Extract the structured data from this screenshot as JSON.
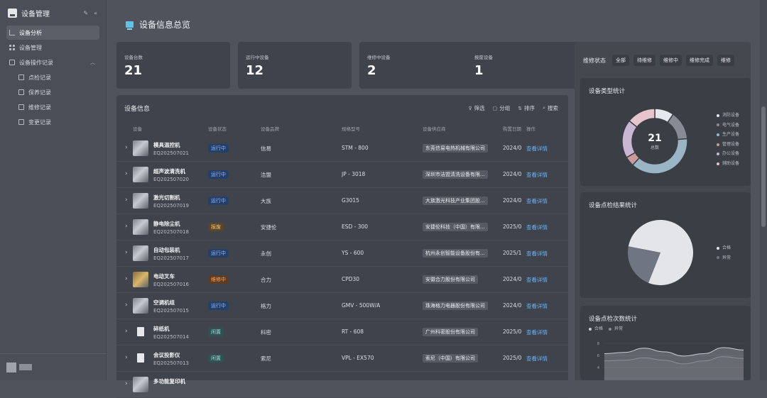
{
  "sidebar": {
    "title": "设备管理",
    "items": [
      {
        "label": "设备分析",
        "active": true
      },
      {
        "label": "设备管理"
      },
      {
        "label": "设备操作记录",
        "expanded": true
      },
      {
        "label": "点检记录"
      },
      {
        "label": "保养记录"
      },
      {
        "label": "维修记录"
      },
      {
        "label": "变更记录"
      }
    ],
    "collapse_icon": "double-chevron-left-icon",
    "edit_icon": "edit-icon"
  },
  "page": {
    "title": "设备信息总览"
  },
  "stats": [
    {
      "label": "设备台数",
      "value": "21"
    },
    {
      "label": "运行中设备",
      "value": "12"
    },
    {
      "label": "维修中设备",
      "value": "2"
    },
    {
      "label": "报废设备",
      "value": "1"
    }
  ],
  "table": {
    "title": "设备信息",
    "toolbar": {
      "filter": "筛选",
      "group": "分组",
      "sort": "排序",
      "search": "搜索"
    },
    "columns": [
      "设备",
      "设备状态",
      "设备品牌",
      "规格型号",
      "设备供应商",
      "购置日期",
      "操作"
    ],
    "rows": [
      {
        "name": "模具温控机",
        "code": "EQ202507021",
        "status": "运行中",
        "brand": "信易",
        "model": "STM - 800",
        "supplier": "东莞信易电热机械有限公司",
        "date": "2024/0",
        "action": "查看详情"
      },
      {
        "name": "超声波清洗机",
        "code": "EQ202507020",
        "status": "运行中",
        "brand": "洁盟",
        "model": "JP - 3018",
        "supplier": "深圳市洁盟清洗设备有限...",
        "date": "2024/0",
        "action": "查看详情"
      },
      {
        "name": "激光切割机",
        "code": "EQ202507019",
        "status": "运行中",
        "brand": "大族",
        "model": "G3015",
        "supplier": "大族激光科技产业集团股...",
        "date": "2024/0",
        "action": "查看详情"
      },
      {
        "name": "静电除尘机",
        "code": "EQ202507018",
        "status": "报废",
        "brand": "安捷伦",
        "model": "ESD - 300",
        "supplier": "安捷伦科技（中国）有限...",
        "date": "2025/0",
        "action": "查看详情"
      },
      {
        "name": "自动包装机",
        "code": "EQ202507017",
        "status": "运行中",
        "brand": "永创",
        "model": "YS - 600",
        "supplier": "杭州永创智能设备股份有...",
        "date": "2025/1",
        "action": "查看详情"
      },
      {
        "name": "电动叉车",
        "code": "EQ202507016",
        "status": "维修中",
        "brand": "合力",
        "model": "CPD30",
        "supplier": "安徽合力股份有限公司",
        "date": "2024/0",
        "action": "查看详情"
      },
      {
        "name": "空调机组",
        "code": "EQ202507015",
        "status": "运行中",
        "brand": "格力",
        "model": "GMV - 500W/A",
        "supplier": "珠海格力电器股份有限公司",
        "date": "2024/0",
        "action": "查看详情"
      },
      {
        "name": "碎纸机",
        "code": "EQ202507014",
        "status": "闲置",
        "brand": "科密",
        "model": "RT - 608",
        "supplier": "广州科密股份有限公司",
        "date": "2025/0",
        "action": "查看详情"
      },
      {
        "name": "会议投影仪",
        "code": "EQ202507013",
        "status": "闲置",
        "brand": "索尼",
        "model": "VPL - EX570",
        "supplier": "索尼（中国）有限公司",
        "date": "2025/0",
        "action": "查看详情"
      },
      {
        "name": "多功能复印机",
        "code": "",
        "status": "",
        "brand": "",
        "model": "",
        "supplier": "",
        "date": "",
        "action": ""
      }
    ]
  },
  "right_panel": {
    "filter_label": "维修状态",
    "filter_chips": [
      "全部",
      "待维修",
      "维修中",
      "维修完成",
      "维修"
    ],
    "cards": [
      {
        "title": "设备类型统计"
      },
      {
        "title": "设备点检结果统计"
      },
      {
        "title": "设备点检次数统计"
      }
    ]
  },
  "chart_data": [
    {
      "type": "pie",
      "donut": true,
      "title": "设备类型统计",
      "center_value": "21",
      "center_label": "总数",
      "categories": [
        "消防设备",
        "电气设备",
        "生产设备",
        "管理设备",
        "办公设备",
        "辅助设备"
      ],
      "values": [
        2,
        3,
        8,
        1,
        4,
        3
      ],
      "colors": [
        "#e6e8ec",
        "#868b94",
        "#9ab6c4",
        "#c99a9a",
        "#c9b6d4",
        "#e8c4cc"
      ],
      "legend_placement": "right"
    },
    {
      "type": "pie",
      "title": "设备点检结果统计",
      "categories": [
        "合格",
        "异常"
      ],
      "values": [
        78,
        22
      ],
      "colors": [
        "#e4e5e8",
        "#707681"
      ],
      "legend_placement": "right"
    },
    {
      "type": "area",
      "title": "设备点检次数统计",
      "legend": [
        "合格",
        "异常"
      ],
      "colors": [
        "#c9ccd2",
        "#8a8f98"
      ],
      "yticks": [
        "8",
        "6",
        "4"
      ],
      "series": [
        {
          "name": "合格",
          "values": [
            6.3,
            6.5,
            7.2,
            6.6,
            5.9,
            6.3,
            7.3,
            6.9
          ]
        },
        {
          "name": "异常",
          "values": [
            5.1,
            5.2,
            5.6,
            5.2,
            4.6,
            5.1,
            5.8,
            5.5
          ]
        }
      ],
      "legend_placement": "top-left"
    }
  ]
}
